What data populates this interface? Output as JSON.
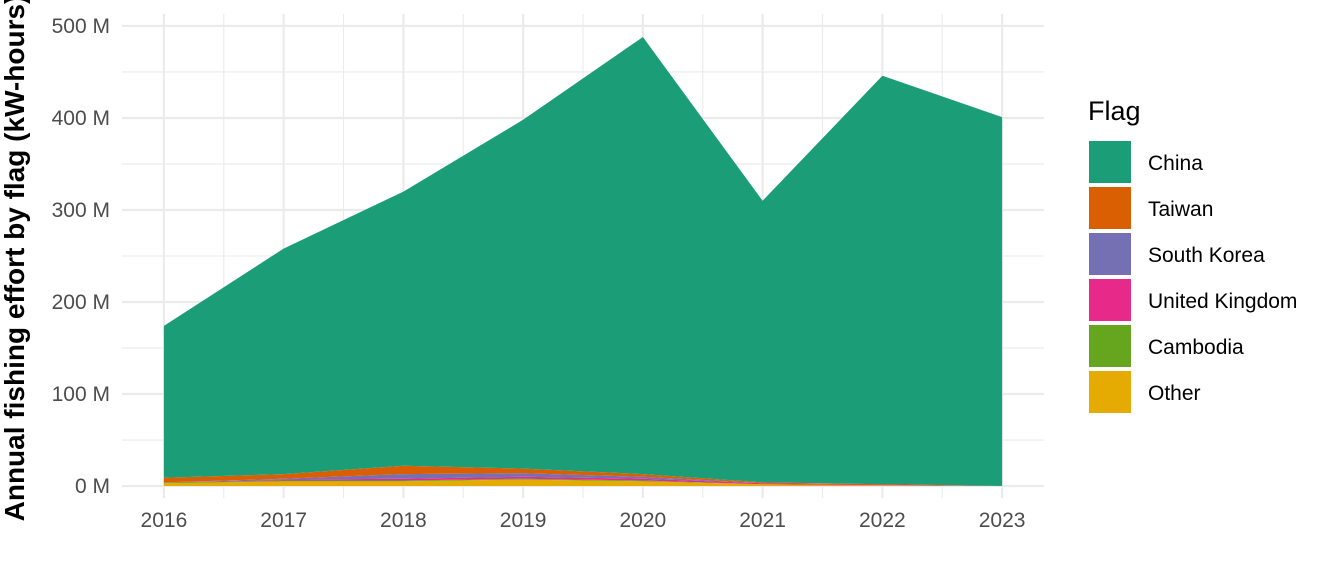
{
  "chart_data": {
    "type": "area",
    "stacked": true,
    "x": [
      2016,
      2017,
      2018,
      2019,
      2020,
      2021,
      2022,
      2023
    ],
    "series": [
      {
        "name": "Other",
        "color": "#E6AB02",
        "values": [
          3,
          5,
          5,
          7,
          5,
          2,
          1,
          0
        ]
      },
      {
        "name": "Cambodia",
        "color": "#66A61E",
        "values": [
          1,
          1,
          1,
          1,
          1,
          0,
          0,
          0
        ]
      },
      {
        "name": "United Kingdom",
        "color": "#E7298A",
        "values": [
          0,
          1,
          2,
          2,
          2,
          1,
          1,
          0
        ]
      },
      {
        "name": "South Korea",
        "color": "#7570B3",
        "values": [
          0,
          1,
          5,
          4,
          2,
          0,
          0,
          0
        ]
      },
      {
        "name": "Taiwan",
        "color": "#D95F02",
        "values": [
          5,
          5,
          9,
          5,
          3,
          1,
          0,
          0
        ]
      },
      {
        "name": "China",
        "color": "#1B9E77",
        "values": [
          165,
          245,
          298,
          379,
          475,
          306,
          444,
          401
        ]
      }
    ],
    "ylabel": "Annual fishing effort by flag (kW-hours)",
    "xlabel": "",
    "y_unit": "M",
    "ylim": [
      -13,
      513
    ],
    "xlim": [
      2015.65,
      2023.35
    ],
    "yticks": [
      0,
      100,
      200,
      300,
      400,
      500
    ],
    "ytick_labels": [
      "0 M",
      "100 M",
      "200 M",
      "300 M",
      "400 M",
      "500 M"
    ],
    "xtick_labels": [
      "2016",
      "2017",
      "2018",
      "2019",
      "2020",
      "2021",
      "2022",
      "2023"
    ],
    "grid": true,
    "legend": {
      "title": "Flag",
      "position": "right",
      "entries": [
        "China",
        "Taiwan",
        "South Korea",
        "United Kingdom",
        "Cambodia",
        "Other"
      ]
    }
  }
}
